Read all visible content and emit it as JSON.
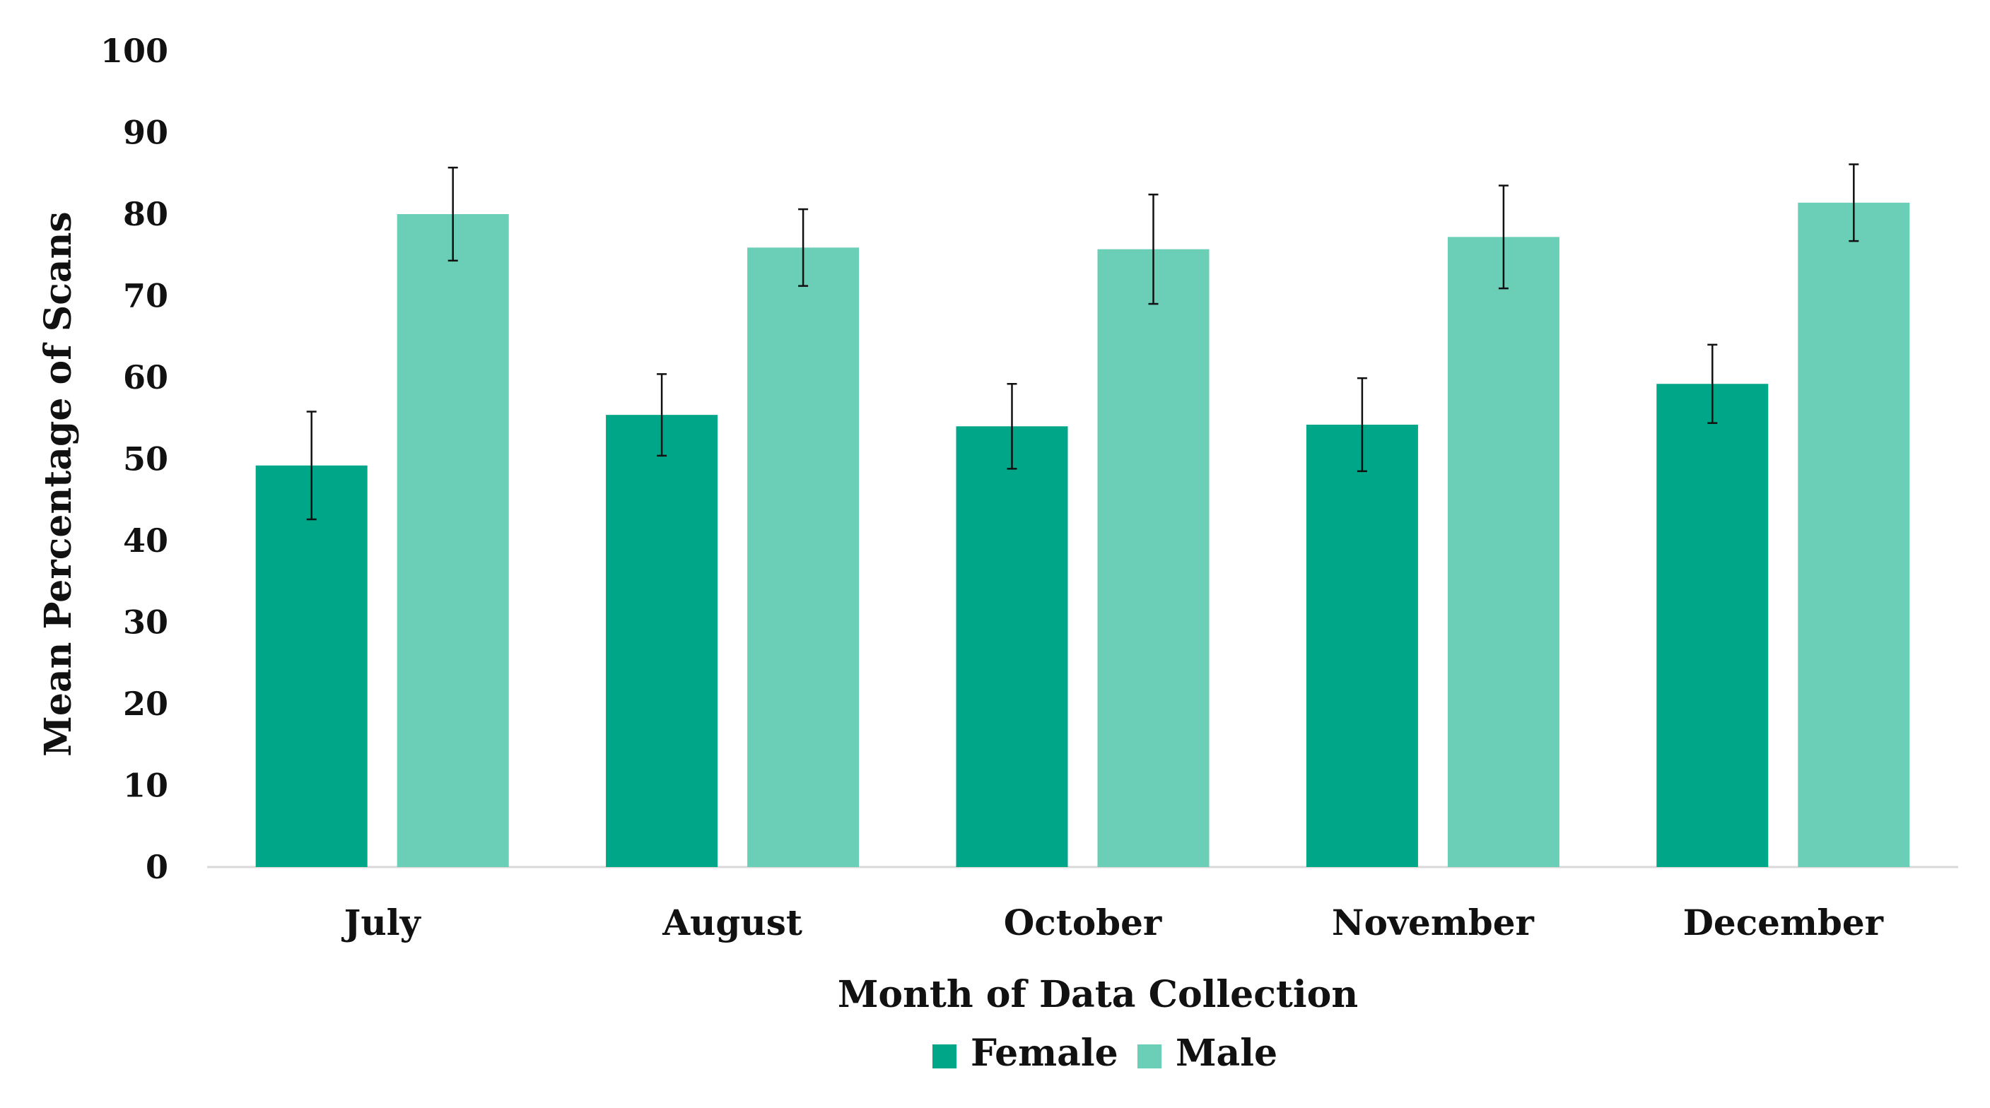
{
  "chart_data": {
    "type": "bar",
    "title": "",
    "xlabel": "Month of Data Collection",
    "ylabel": "Mean Percentage of Scans",
    "categories": [
      "July",
      "August",
      "October",
      "November",
      "December"
    ],
    "ylim": [
      0,
      100
    ],
    "yticks": [
      0,
      10,
      20,
      30,
      40,
      50,
      60,
      70,
      80,
      90,
      100
    ],
    "grid": false,
    "legend_position": "bottom",
    "series": [
      {
        "name": "Female",
        "color": "#00a688",
        "values": [
          49.2,
          55.4,
          54.0,
          54.2,
          59.2
        ],
        "error": [
          6.6,
          5.0,
          5.2,
          5.7,
          4.8
        ]
      },
      {
        "name": "Male",
        "color": "#6bcfb7",
        "values": [
          80.0,
          75.9,
          75.7,
          77.2,
          81.4
        ],
        "error": [
          5.7,
          4.7,
          6.7,
          6.3,
          4.7
        ]
      }
    ]
  }
}
